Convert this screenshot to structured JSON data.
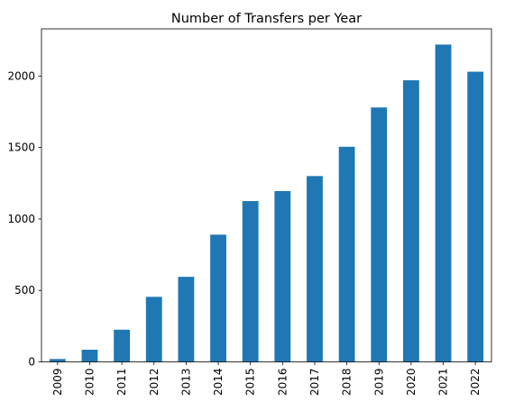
{
  "chart_data": {
    "type": "bar",
    "title": "Number of Transfers per Year",
    "xlabel": "",
    "ylabel": "",
    "categories": [
      "2009",
      "2010",
      "2011",
      "2012",
      "2013",
      "2014",
      "2015",
      "2016",
      "2017",
      "2018",
      "2019",
      "2020",
      "2021",
      "2022"
    ],
    "values": [
      20,
      85,
      225,
      455,
      595,
      890,
      1125,
      1195,
      1300,
      1505,
      1780,
      1970,
      2220,
      2030
    ],
    "ylim": [
      0,
      2330
    ],
    "yticks": [
      0,
      500,
      1000,
      1500,
      2000
    ],
    "grid": false,
    "legend": "none",
    "bar_color": "#1f77b4"
  }
}
